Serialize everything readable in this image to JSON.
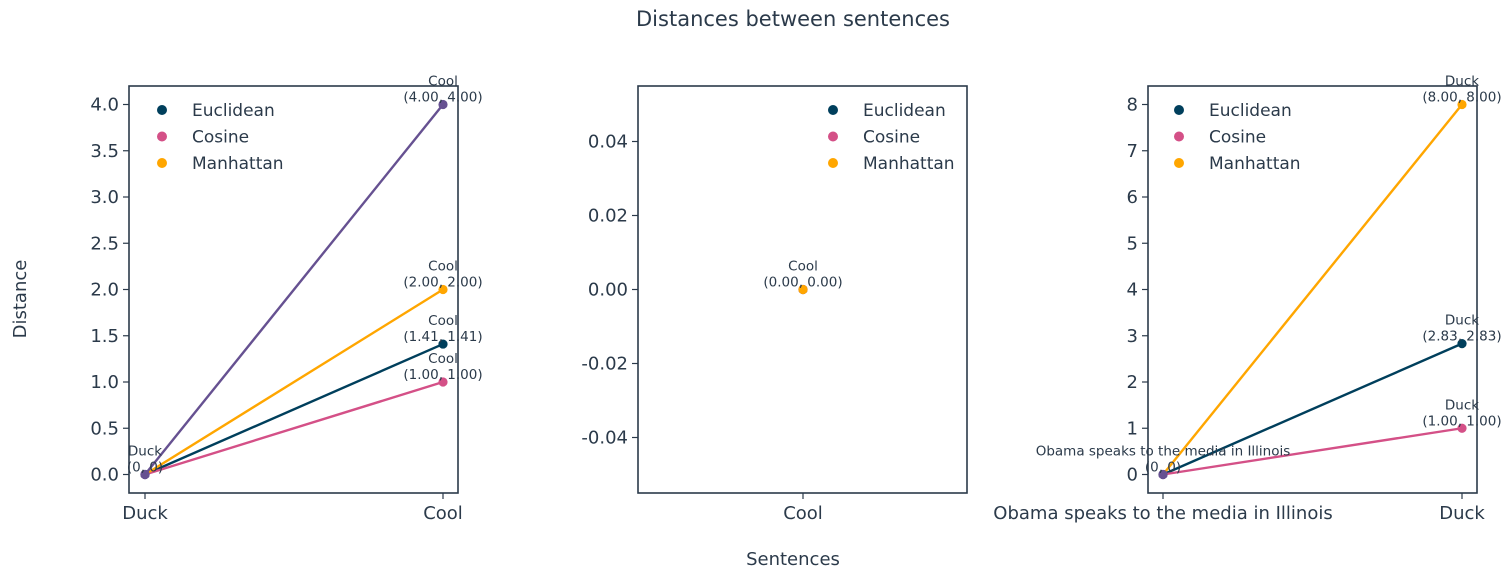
{
  "figure": {
    "title": "Distances between sentences",
    "xlabel": "Sentences",
    "ylabel": "Distance"
  },
  "colors": {
    "Euclidean": "#003f5c",
    "Cosine": "#d45087",
    "Manhattan": "#ffa600",
    "overlap": "#665191",
    "axis": "#2b3a4a"
  },
  "chart_data": [
    {
      "type": "line",
      "categories": [
        "Duck",
        "Cool"
      ],
      "ylim": [
        -0.2,
        4.2
      ],
      "yticks": [
        0.0,
        0.5,
        1.0,
        1.5,
        2.0,
        2.5,
        3.0,
        3.5,
        4.0
      ],
      "ytick_labels": [
        "0.0",
        "0.5",
        "1.0",
        "1.5",
        "2.0",
        "2.5",
        "3.0",
        "3.5",
        "4.0"
      ],
      "legend": [
        "Euclidean",
        "Cosine",
        "Manhattan"
      ],
      "legend_placement": "top-left",
      "series": [
        {
          "name": "Euclidean",
          "values": [
            0,
            1.41
          ]
        },
        {
          "name": "Cosine",
          "values": [
            0,
            1.0
          ]
        },
        {
          "name": "Manhattan",
          "values": [
            0,
            2.0
          ]
        },
        {
          "name": "",
          "values": [
            0,
            4.0
          ]
        }
      ],
      "annotations": [
        {
          "category": "Duck",
          "value": 0,
          "name": "Duck",
          "coord": "(0, 0)"
        },
        {
          "category": "Cool",
          "value": 4.0,
          "name": "Cool",
          "coord": "(4.00, 4.00)"
        },
        {
          "category": "Cool",
          "value": 2.0,
          "name": "Cool",
          "coord": "(2.00, 2.00)"
        },
        {
          "category": "Cool",
          "value": 1.41,
          "name": "Cool",
          "coord": "(1.41, 1.41)"
        },
        {
          "category": "Cool",
          "value": 1.0,
          "name": "Cool",
          "coord": "(1.00, 1.00)"
        }
      ]
    },
    {
      "type": "scatter",
      "categories": [
        "Cool"
      ],
      "ylim": [
        -0.055,
        0.055
      ],
      "yticks": [
        -0.04,
        -0.02,
        0.0,
        0.02,
        0.04
      ],
      "ytick_labels": [
        "-0.04",
        "-0.02",
        "0.00",
        "0.02",
        "0.04"
      ],
      "legend": [
        "Euclidean",
        "Cosine",
        "Manhattan"
      ],
      "legend_placement": "top-right",
      "series": [
        {
          "name": "Euclidean",
          "values": [
            0.0
          ]
        },
        {
          "name": "Cosine",
          "values": [
            0.0
          ]
        },
        {
          "name": "Manhattan",
          "values": [
            0.0
          ]
        }
      ],
      "annotations": [
        {
          "category": "Cool",
          "value": 0.0,
          "name": "Cool",
          "coord": "(0.00, 0.00)"
        }
      ]
    },
    {
      "type": "line",
      "categories": [
        "Obama speaks to the media in Illinois",
        "Duck"
      ],
      "ylim": [
        -0.4,
        8.4
      ],
      "yticks": [
        0,
        1,
        2,
        3,
        4,
        5,
        6,
        7,
        8
      ],
      "ytick_labels": [
        "0",
        "1",
        "2",
        "3",
        "4",
        "5",
        "6",
        "7",
        "8"
      ],
      "legend": [
        "Euclidean",
        "Cosine",
        "Manhattan"
      ],
      "legend_placement": "top-left",
      "series": [
        {
          "name": "Euclidean",
          "values": [
            0,
            2.83
          ]
        },
        {
          "name": "Cosine",
          "values": [
            0,
            1.0
          ]
        },
        {
          "name": "Manhattan",
          "values": [
            0,
            8.0
          ]
        }
      ],
      "annotations": [
        {
          "category": "Obama speaks to the media in Illinois",
          "value": 0,
          "name": "Obama speaks to the media in Illinois",
          "coord": "(0, 0)"
        },
        {
          "category": "Duck",
          "value": 8.0,
          "name": "Duck",
          "coord": "(8.00, 8.00)"
        },
        {
          "category": "Duck",
          "value": 2.83,
          "name": "Duck",
          "coord": "(2.83, 2.83)"
        },
        {
          "category": "Duck",
          "value": 1.0,
          "name": "Duck",
          "coord": "(1.00, 1.00)"
        }
      ]
    }
  ]
}
